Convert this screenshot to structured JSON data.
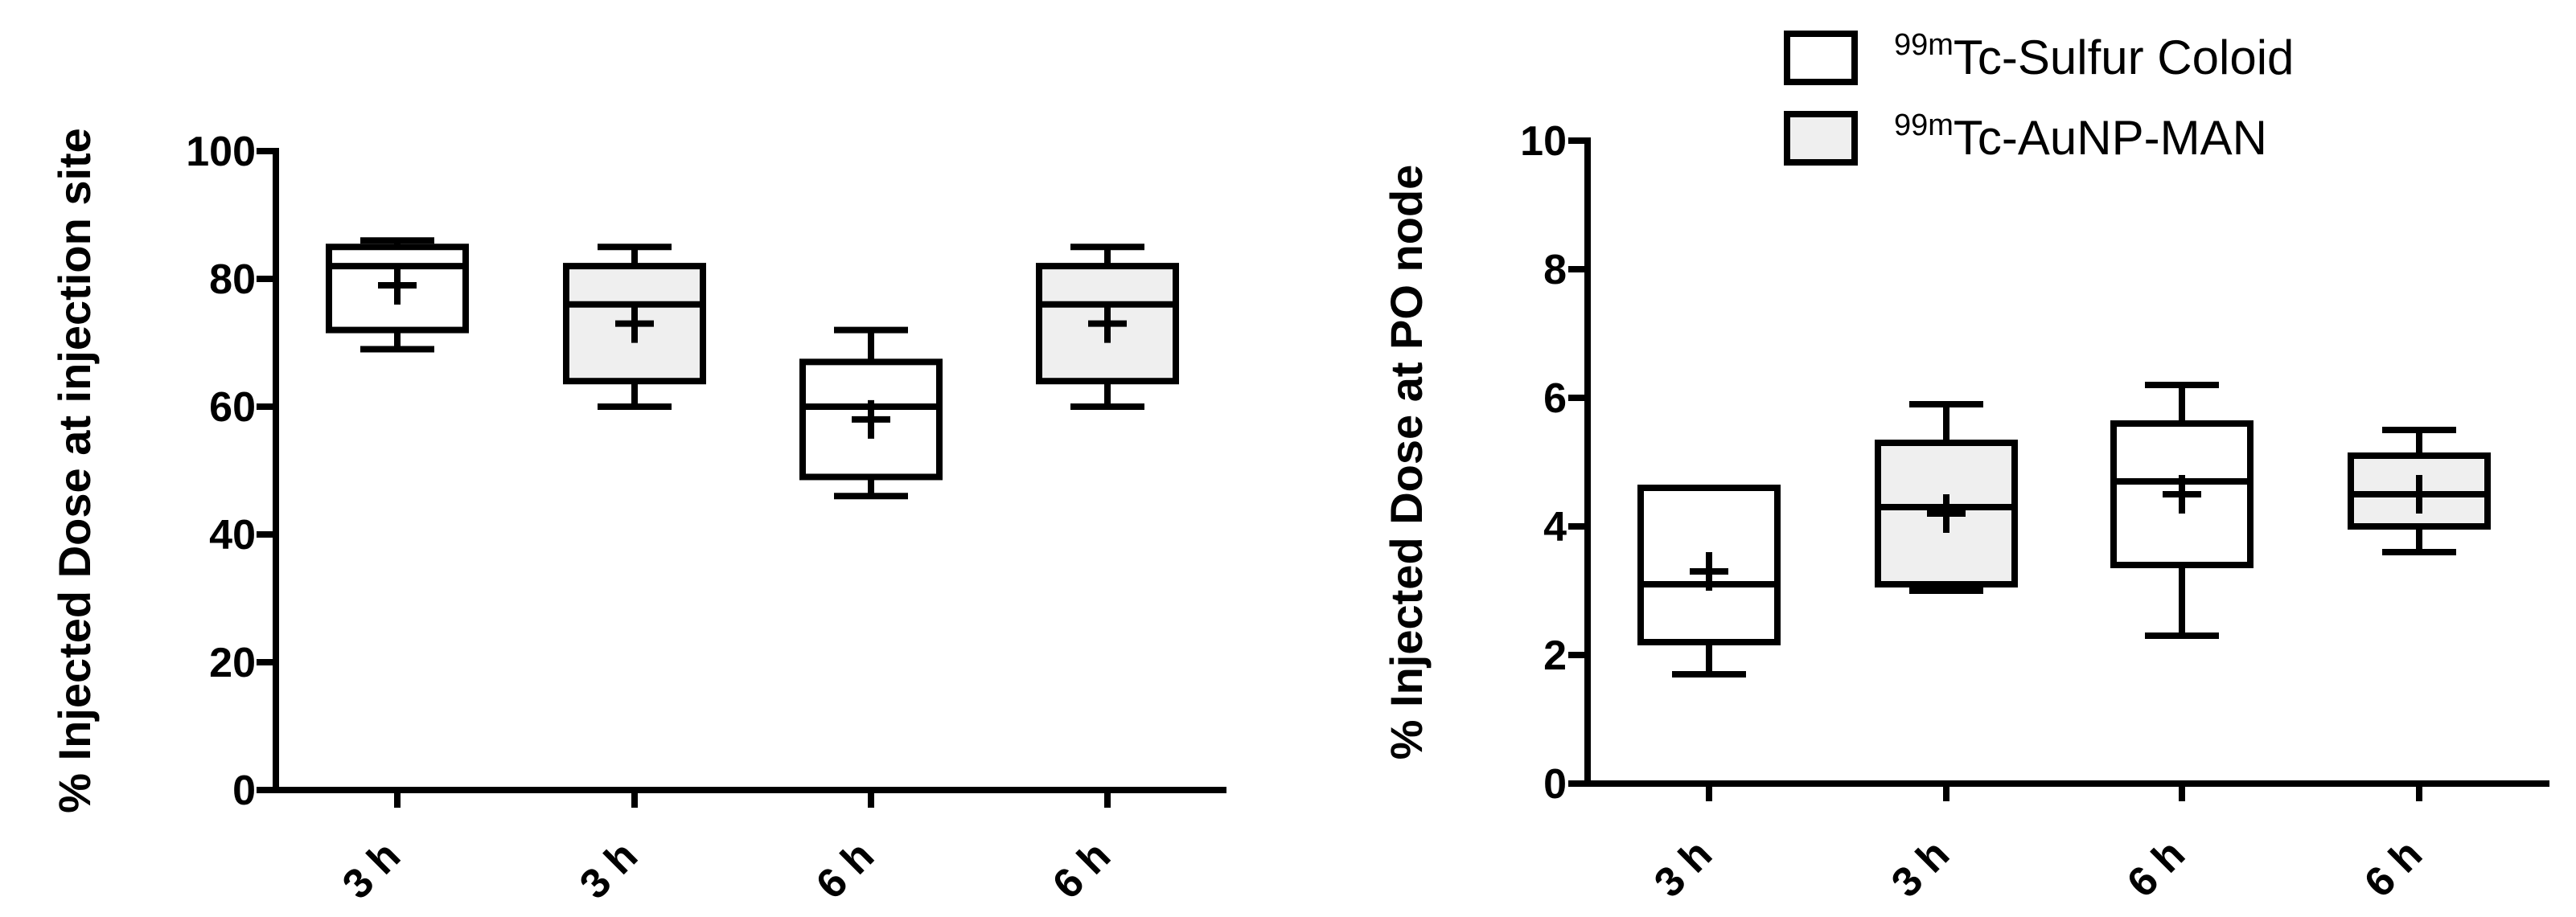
{
  "legend": {
    "placement": "top-right",
    "items": [
      {
        "isotope": "99m",
        "name": "Tc-Sulfur Coloid",
        "fill": "#ffffff"
      },
      {
        "isotope": "99m",
        "name": "Tc-AuNP-MAN",
        "fill": "#efefef"
      }
    ]
  },
  "chart_data": [
    {
      "type": "box",
      "ylabel": "% Injected Dose at injection site",
      "ylim": [
        0,
        100
      ],
      "yticks": [
        "0",
        "20",
        "40",
        "60",
        "80",
        "100"
      ],
      "categories": [
        "3 h",
        "3 h",
        "6 h",
        "6 h"
      ],
      "boxes": [
        {
          "category": "3 h",
          "series": 0,
          "min": 69,
          "q1": 72,
          "median": 82,
          "q3": 85,
          "max": 86,
          "mean": 79
        },
        {
          "category": "3 h",
          "series": 1,
          "min": 60,
          "q1": 64,
          "median": 76,
          "q3": 82,
          "max": 85,
          "mean": 73
        },
        {
          "category": "6 h",
          "series": 0,
          "min": 46,
          "q1": 49,
          "median": 60,
          "q3": 67,
          "max": 72,
          "mean": 58
        },
        {
          "category": "6 h",
          "series": 1,
          "min": 60,
          "q1": 64,
          "median": 76,
          "q3": 82,
          "max": 85,
          "mean": 73
        }
      ]
    },
    {
      "type": "box",
      "ylabel": "% Injected Dose at PO node",
      "ylim": [
        0,
        10
      ],
      "yticks": [
        "0",
        "2",
        "4",
        "6",
        "8",
        "10"
      ],
      "categories": [
        "3 h",
        "3 h",
        "6 h",
        "6 h"
      ],
      "boxes": [
        {
          "category": "3 h",
          "series": 0,
          "min": 1.7,
          "q1": 2.2,
          "median": 3.1,
          "q3": 4.6,
          "max": 4.6,
          "mean": 3.3
        },
        {
          "category": "3 h",
          "series": 1,
          "min": 3.0,
          "q1": 3.1,
          "median": 4.3,
          "q3": 5.3,
          "max": 5.9,
          "mean": 4.2
        },
        {
          "category": "6 h",
          "series": 0,
          "min": 2.3,
          "q1": 3.4,
          "median": 4.7,
          "q3": 5.6,
          "max": 6.2,
          "mean": 4.5
        },
        {
          "category": "6 h",
          "series": 1,
          "min": 3.6,
          "q1": 4.0,
          "median": 4.5,
          "q3": 5.1,
          "max": 5.5,
          "mean": 4.5
        }
      ]
    }
  ]
}
